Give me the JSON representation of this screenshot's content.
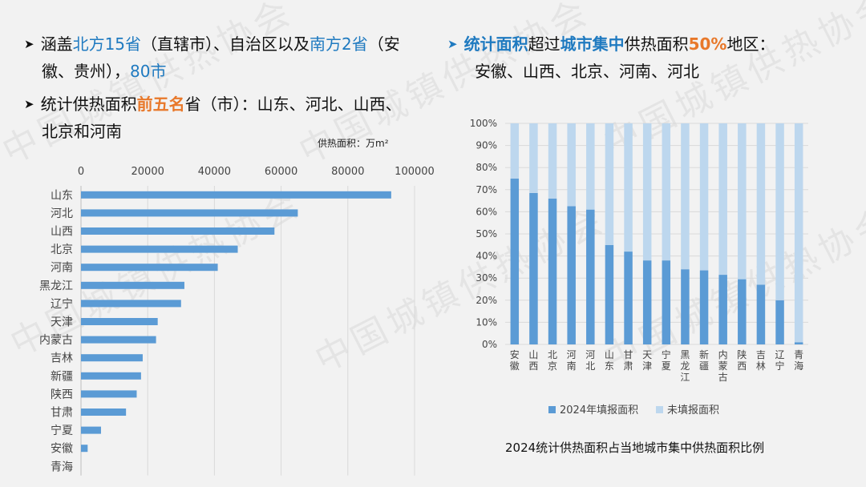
{
  "watermark_text": "中国城镇供热协会",
  "left_bullets": {
    "b1": {
      "p1": "涵盖",
      "p2": "北方15省",
      "p3": "（直辖市）、自治区以及",
      "p4": "南方2省",
      "p5": "（安",
      "line2a": "徽、贵州），",
      "line2b": "80市"
    },
    "b2": {
      "p1": "统计供热面积",
      "p2": "前五名",
      "p3": "省（市）：山东、河北、山西、",
      "line2": "北京和河南"
    }
  },
  "right_bullet": {
    "p1": "统计面积",
    "p2": "超过",
    "p3": "城市集中",
    "p4": "供热面积",
    "p5": "50%",
    "p6": "地区：",
    "line2": "安徽、山西、北京、河南、河北"
  },
  "colors": {
    "bar": "#5b9bd5",
    "filled": "#5b9bd5",
    "unfilled": "#bdd7ee",
    "blue": "#1f7ac0",
    "orange": "#e8782a"
  },
  "chart_data": [
    {
      "type": "bar",
      "orientation": "horizontal",
      "unit_label": "供热面积：万m²",
      "categories": [
        "山东",
        "河北",
        "山西",
        "北京",
        "河南",
        "黑龙江",
        "辽宁",
        "天津",
        "内蒙古",
        "吉林",
        "新疆",
        "陕西",
        "甘肃",
        "宁夏",
        "安徽",
        "青海"
      ],
      "values": [
        93000,
        65000,
        58000,
        47000,
        41000,
        31000,
        30000,
        23000,
        22500,
        18500,
        18000,
        16700,
        13500,
        6000,
        2000,
        0
      ],
      "xlim": [
        0,
        100000
      ],
      "xticks": [
        "0",
        "20000",
        "40000",
        "60000",
        "80000",
        "100000"
      ],
      "axis_position": "top"
    },
    {
      "type": "bar",
      "stacked": true,
      "categories": [
        "安徽",
        "山西",
        "北京",
        "河南",
        "河北",
        "山东",
        "甘肃",
        "天津",
        "宁夏",
        "黑龙江",
        "新疆",
        "内蒙古",
        "陕西",
        "吉林",
        "辽宁",
        "青海"
      ],
      "series": [
        {
          "name": "2024年填报面积",
          "values": [
            75,
            68.5,
            66,
            62.5,
            61,
            45,
            42,
            38,
            38,
            34,
            33.5,
            31.5,
            29.5,
            27,
            20,
            1
          ]
        },
        {
          "name": "未填报面积",
          "values": [
            25,
            31.5,
            34,
            37.5,
            39,
            55,
            58,
            62,
            62,
            66,
            66.5,
            68.5,
            70.5,
            73,
            80,
            99
          ]
        }
      ],
      "ylim": [
        0,
        100
      ],
      "yticks": [
        "0%",
        "10%",
        "20%",
        "30%",
        "40%",
        "50%",
        "60%",
        "70%",
        "80%",
        "90%",
        "100%"
      ],
      "legend_position": "bottom",
      "caption": "2024统计供热面积占当地城市集中供热面积比例"
    }
  ]
}
